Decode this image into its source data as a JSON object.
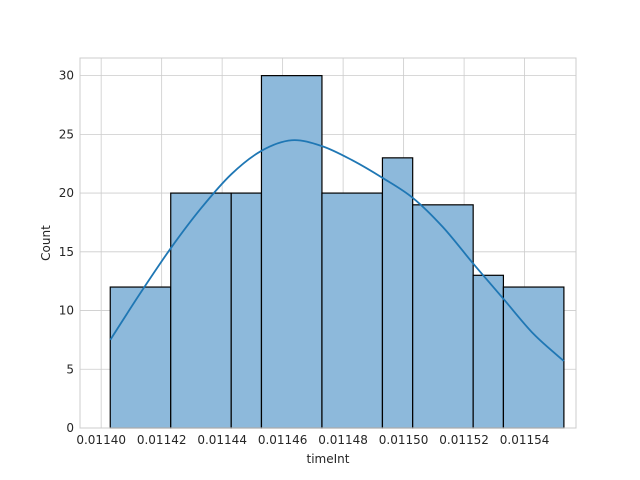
{
  "chart_data": {
    "type": "bar",
    "xlabel": "timeInt",
    "ylabel": "Count",
    "xlim": [
      0.011393,
      0.011557
    ],
    "ylim": [
      0,
      31.5
    ],
    "grid": true,
    "bins": [
      {
        "x0": 0.011403,
        "x1": 0.011423,
        "count": 12
      },
      {
        "x0": 0.011423,
        "x1": 0.011443,
        "count": 20
      },
      {
        "x0": 0.011443,
        "x1": 0.011453,
        "count": 20
      },
      {
        "x0": 0.011453,
        "x1": 0.011473,
        "count": 30
      },
      {
        "x0": 0.011473,
        "x1": 0.011493,
        "count": 20
      },
      {
        "x0": 0.011493,
        "x1": 0.011503,
        "count": 23
      },
      {
        "x0": 0.011503,
        "x1": 0.011523,
        "count": 19
      },
      {
        "x0": 0.011523,
        "x1": 0.011533,
        "count": 13
      },
      {
        "x0": 0.011533,
        "x1": 0.011553,
        "count": 12
      }
    ],
    "kde": {
      "x": [
        0.011403,
        0.011413,
        0.011423,
        0.011433,
        0.011443,
        0.011453,
        0.011463,
        0.011473,
        0.011483,
        0.011493,
        0.011503,
        0.011513,
        0.011523,
        0.011533,
        0.011543,
        0.011553
      ],
      "y": [
        7.5,
        11.5,
        15.3,
        18.7,
        21.6,
        23.6,
        24.5,
        24.0,
        22.8,
        21.3,
        19.6,
        17.1,
        14.0,
        11.0,
        8.0,
        5.7
      ]
    },
    "xticks": [
      0.0114,
      0.01142,
      0.01144,
      0.01146,
      0.01148,
      0.0115,
      0.01152,
      0.01154
    ],
    "xtick_labels": [
      "0.01140",
      "0.01142",
      "0.01144",
      "0.01146",
      "0.01148",
      "0.01150",
      "0.01152",
      "0.01154"
    ],
    "yticks": [
      0,
      5,
      10,
      15,
      20,
      25,
      30
    ],
    "ytick_labels": [
      "0",
      "5",
      "10",
      "15",
      "20",
      "25",
      "30"
    ],
    "colors": {
      "bar_fill": "#8db9db",
      "bar_edge": "#000000",
      "kde_line": "#1f77b4",
      "grid": "#cccccc",
      "spine": "#cccccc"
    }
  }
}
